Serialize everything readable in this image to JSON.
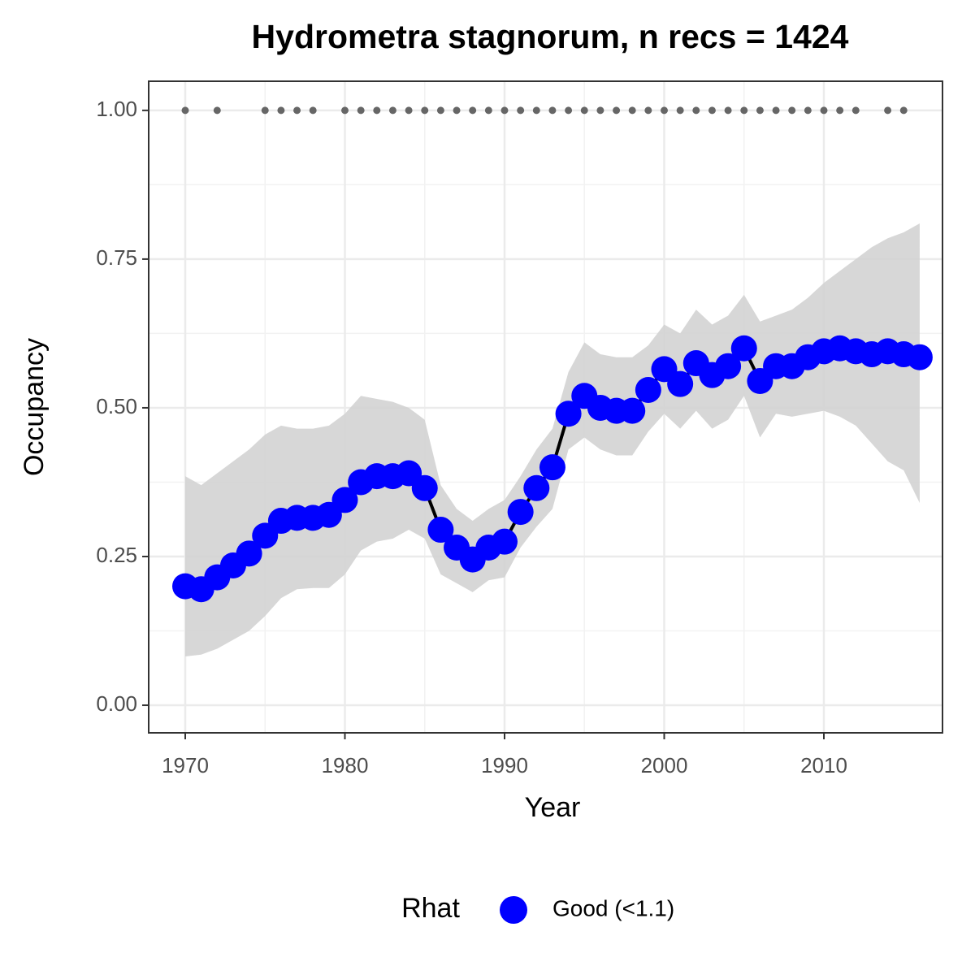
{
  "chart_data": {
    "type": "line",
    "title": "Hydrometra stagnorum, n recs = 1424",
    "x_label": "Year",
    "y_label": "Occupancy",
    "legend_title": "Rhat",
    "legend_position": "bottom",
    "x": [
      1970,
      1971,
      1972,
      1973,
      1974,
      1975,
      1976,
      1977,
      1978,
      1979,
      1980,
      1981,
      1982,
      1983,
      1984,
      1985,
      1986,
      1987,
      1988,
      1989,
      1990,
      1991,
      1992,
      1993,
      1994,
      1995,
      1996,
      1997,
      1998,
      1999,
      2000,
      2001,
      2002,
      2003,
      2004,
      2005,
      2006,
      2007,
      2008,
      2009,
      2010,
      2011,
      2012,
      2013,
      2014,
      2015,
      2016
    ],
    "series": [
      {
        "name": "Good (<1.1)",
        "color": "#0000ff",
        "line_color": "#000000",
        "band_color": "#d3d3d3",
        "values": [
          0.2,
          0.195,
          0.215,
          0.235,
          0.255,
          0.285,
          0.31,
          0.315,
          0.315,
          0.32,
          0.345,
          0.375,
          0.385,
          0.385,
          0.39,
          0.365,
          0.295,
          0.265,
          0.245,
          0.265,
          0.275,
          0.325,
          0.365,
          0.4,
          0.49,
          0.52,
          0.5,
          0.495,
          0.495,
          0.53,
          0.565,
          0.54,
          0.575,
          0.555,
          0.57,
          0.6,
          0.545,
          0.57,
          0.57,
          0.585,
          0.595,
          0.6,
          0.595,
          0.59,
          0.595,
          0.59,
          0.585
        ],
        "lower": [
          0.082,
          0.085,
          0.095,
          0.11,
          0.125,
          0.15,
          0.18,
          0.195,
          0.197,
          0.197,
          0.22,
          0.26,
          0.275,
          0.28,
          0.295,
          0.28,
          0.22,
          0.205,
          0.19,
          0.21,
          0.215,
          0.265,
          0.3,
          0.33,
          0.43,
          0.45,
          0.43,
          0.42,
          0.42,
          0.46,
          0.49,
          0.465,
          0.495,
          0.465,
          0.48,
          0.52,
          0.45,
          0.49,
          0.485,
          0.49,
          0.495,
          0.485,
          0.47,
          0.44,
          0.41,
          0.395,
          0.34
        ],
        "upper": [
          0.385,
          0.37,
          0.39,
          0.41,
          0.43,
          0.455,
          0.47,
          0.465,
          0.465,
          0.47,
          0.49,
          0.52,
          0.515,
          0.51,
          0.5,
          0.48,
          0.37,
          0.33,
          0.31,
          0.33,
          0.345,
          0.385,
          0.43,
          0.465,
          0.56,
          0.61,
          0.59,
          0.585,
          0.585,
          0.605,
          0.64,
          0.625,
          0.665,
          0.64,
          0.655,
          0.69,
          0.645,
          0.655,
          0.665,
          0.685,
          0.71,
          0.73,
          0.75,
          0.77,
          0.785,
          0.795,
          0.81
        ]
      }
    ],
    "record_years": [
      1970,
      1972,
      1975,
      1976,
      1977,
      1978,
      1980,
      1981,
      1982,
      1983,
      1984,
      1985,
      1986,
      1987,
      1988,
      1989,
      1990,
      1991,
      1992,
      1993,
      1994,
      1995,
      1996,
      1997,
      1998,
      1999,
      2000,
      2001,
      2002,
      2003,
      2004,
      2005,
      2006,
      2007,
      2008,
      2009,
      2010,
      2011,
      2012,
      2014,
      2015
    ],
    "record_values": [
      1,
      1,
      1,
      1,
      1,
      1,
      1,
      1,
      1,
      1,
      1,
      1,
      1,
      1,
      1,
      1,
      1,
      1,
      1,
      1,
      1,
      1,
      1,
      1,
      1,
      1,
      1,
      1,
      1,
      1,
      1,
      1,
      1,
      1,
      1,
      1,
      1,
      1,
      1,
      1,
      1
    ],
    "record_color": "#666666",
    "xlim": [
      1967.71,
      2017.43
    ],
    "ylim": [
      -0.0464,
      1.049
    ],
    "xticks": [
      1970,
      1980,
      1990,
      2000,
      2010
    ],
    "yticks": [
      {
        "value": 0,
        "label": "0.00"
      },
      {
        "value": 0.25,
        "label": "0.25"
      },
      {
        "value": 0.5,
        "label": "0.50"
      },
      {
        "value": 0.75,
        "label": "0.75"
      },
      {
        "value": 1,
        "label": "1.00"
      }
    ],
    "grid": true
  }
}
